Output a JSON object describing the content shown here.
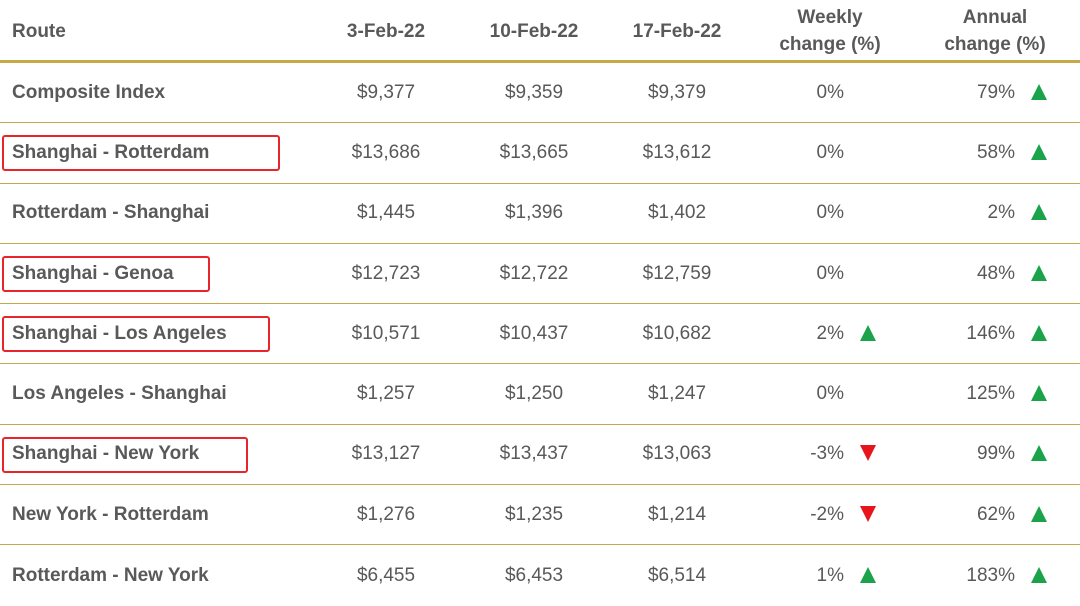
{
  "headers": {
    "route": "Route",
    "c1": "3-Feb-22",
    "c2": "10-Feb-22",
    "c3": "17-Feb-22",
    "weekly_line1": "Weekly",
    "weekly_line2": "change (%)",
    "annual_line1": "Annual",
    "annual_line2": "change (%)"
  },
  "colors": {
    "up_arrow": "#1aa34a",
    "down_arrow": "#e8141c",
    "highlight_box": "#e8252b",
    "rule": "#c9a84a"
  },
  "rows": [
    {
      "route": "Composite Index",
      "c1": "$9,377",
      "c2": "$9,359",
      "c3": "$9,379",
      "weekly": "0%",
      "weekly_trend": "none",
      "annual": "79%",
      "annual_trend": "up",
      "highlighted": false
    },
    {
      "route": "Shanghai - Rotterdam",
      "c1": "$13,686",
      "c2": "$13,665",
      "c3": "$13,612",
      "weekly": "0%",
      "weekly_trend": "none",
      "annual": "58%",
      "annual_trend": "up",
      "highlighted": true
    },
    {
      "route": "Rotterdam - Shanghai",
      "c1": "$1,445",
      "c2": "$1,396",
      "c3": "$1,402",
      "weekly": "0%",
      "weekly_trend": "none",
      "annual": "2%",
      "annual_trend": "up",
      "highlighted": false
    },
    {
      "route": "Shanghai - Genoa",
      "c1": "$12,723",
      "c2": "$12,722",
      "c3": "$12,759",
      "weekly": "0%",
      "weekly_trend": "none",
      "annual": "48%",
      "annual_trend": "up",
      "highlighted": true
    },
    {
      "route": "Shanghai - Los Angeles",
      "c1": "$10,571",
      "c2": "$10,437",
      "c3": "$10,682",
      "weekly": "2%",
      "weekly_trend": "up",
      "annual": "146%",
      "annual_trend": "up",
      "highlighted": true
    },
    {
      "route": "Los Angeles - Shanghai",
      "c1": "$1,257",
      "c2": "$1,250",
      "c3": "$1,247",
      "weekly": "0%",
      "weekly_trend": "none",
      "annual": "125%",
      "annual_trend": "up",
      "highlighted": false
    },
    {
      "route": "Shanghai - New York",
      "c1": "$13,127",
      "c2": "$13,437",
      "c3": "$13,063",
      "weekly": "-3%",
      "weekly_trend": "down",
      "annual": "99%",
      "annual_trend": "up",
      "highlighted": true
    },
    {
      "route": "New York - Rotterdam",
      "c1": "$1,276",
      "c2": "$1,235",
      "c3": "$1,214",
      "weekly": "-2%",
      "weekly_trend": "down",
      "annual": "62%",
      "annual_trend": "up",
      "highlighted": false
    },
    {
      "route": "Rotterdam - New York",
      "c1": "$6,455",
      "c2": "$6,453",
      "c3": "$6,514",
      "weekly": "1%",
      "weekly_trend": "up",
      "annual": "183%",
      "annual_trend": "up",
      "highlighted": false
    }
  ]
}
